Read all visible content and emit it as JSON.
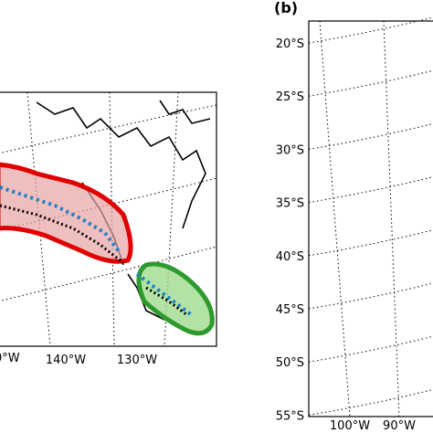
{
  "left_panel": {
    "lon_labels": [
      "0°W",
      "140°W",
      "130°W"
    ]
  },
  "right_panel": {
    "label": "(b)",
    "lat_labels": [
      "20°S",
      "25°S",
      "30°S",
      "35°S",
      "40°S",
      "45°S",
      "50°S",
      "55°S"
    ],
    "lon_labels": [
      "100°W",
      "90°W"
    ]
  }
}
